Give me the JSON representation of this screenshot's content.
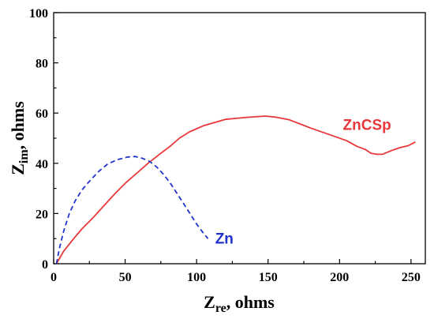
{
  "chart_data": {
    "type": "line",
    "xlabel": {
      "main": "Z",
      "sub": "re",
      "rest": ", ohms"
    },
    "ylabel": {
      "main": "Z",
      "sub": "im",
      "rest": ", ohms"
    },
    "xlim": [
      0,
      260
    ],
    "ylim": [
      0,
      100
    ],
    "xticks": [
      0,
      50,
      100,
      150,
      200,
      250
    ],
    "yticks": [
      0,
      20,
      40,
      60,
      80,
      100
    ],
    "grid": false,
    "legend": "inline-labels",
    "series": [
      {
        "name": "ZnCSp",
        "color": "#e8383b",
        "dash": "solid",
        "x": [
          2,
          7,
          14,
          20,
          27,
          35,
          43,
          50,
          58,
          66,
          75,
          82,
          88,
          95,
          105,
          120,
          135,
          148,
          155,
          165,
          180,
          195,
          205,
          212,
          218,
          222,
          226,
          230,
          236,
          242,
          248,
          253
        ],
        "y": [
          0,
          5,
          10,
          14,
          18,
          23,
          28,
          32,
          36,
          40,
          44,
          47,
          50,
          52.5,
          55,
          57.5,
          58.3,
          58.8,
          58.4,
          57.3,
          54,
          51,
          49,
          46.8,
          45.5,
          44,
          43.6,
          43.6,
          45,
          46.2,
          47,
          48.5
        ]
      },
      {
        "name": "Zn",
        "color": "#2233cc",
        "dash": "dashed",
        "x": [
          2,
          4,
          7,
          11,
          15,
          20,
          26,
          32,
          38,
          45,
          52,
          57,
          62,
          67,
          72,
          77,
          82,
          88,
          94,
          100,
          105,
          108
        ],
        "y": [
          0,
          6,
          13,
          20,
          25,
          29.5,
          33.5,
          37,
          39.8,
          41.5,
          42.5,
          42.7,
          42,
          40.8,
          38.6,
          35.5,
          31.8,
          26.5,
          21.2,
          15.8,
          12,
          10
        ]
      }
    ]
  }
}
